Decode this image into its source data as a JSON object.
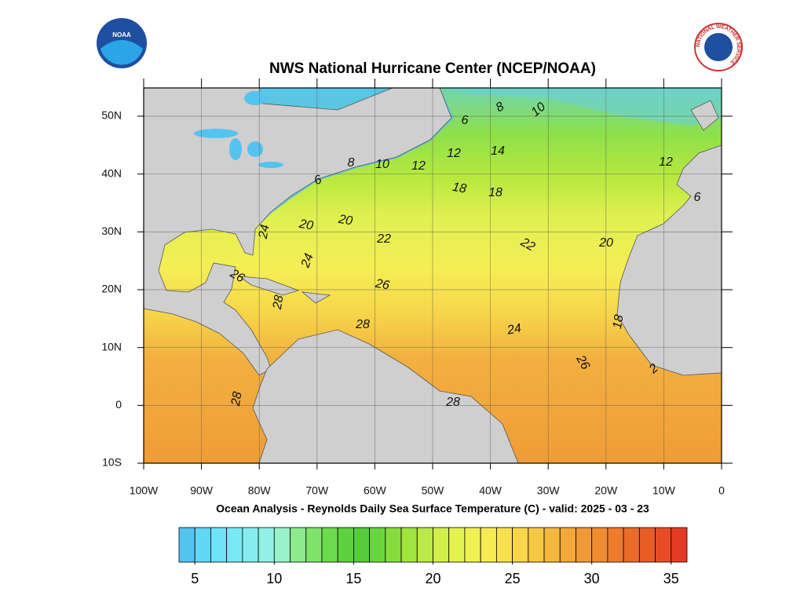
{
  "header": {
    "title": "NWS National Hurricane Center (NCEP/NOAA)",
    "subtitle": "Ocean Analysis - Reynolds Daily Sea Surface Temperature (C) - valid: 2025 - 03 - 23",
    "noaa_logo": "NOAA",
    "nws_logo": "NATIONAL WEATHER SERVICE"
  },
  "map": {
    "lon_ticks": [
      "100W",
      "90W",
      "80W",
      "70W",
      "60W",
      "50W",
      "40W",
      "30W",
      "20W",
      "10W",
      "0"
    ],
    "lat_ticks": [
      "50N",
      "40N",
      "30N",
      "20N",
      "10N",
      "0",
      "10S"
    ],
    "contour_labels": [
      "8",
      "10",
      "6",
      "12",
      "14",
      "8",
      "10",
      "12",
      "6",
      "18",
      "18",
      "12",
      "6",
      "20",
      "20",
      "22",
      "22",
      "20",
      "24",
      "24",
      "26",
      "26",
      "28",
      "28",
      "24",
      "18",
      "26",
      "2",
      "28",
      "28"
    ]
  },
  "colorbar": {
    "range": [
      4,
      36
    ],
    "ticks": [
      5,
      10,
      15,
      20,
      25,
      30,
      35
    ],
    "colors": [
      "#55c3f0",
      "#62d6f5",
      "#6ee3f7",
      "#7ae8f5",
      "#86ecef",
      "#92f0e4",
      "#9cf2c8",
      "#8eea8c",
      "#7ee36a",
      "#6cdb4e",
      "#5cd23e",
      "#54cc3c",
      "#6ad43c",
      "#86dc3c",
      "#a0e43e",
      "#bbea44",
      "#d2ef4a",
      "#e4f250",
      "#eef152",
      "#f5ec54",
      "#f7e150",
      "#f8d64a",
      "#f7c844",
      "#f4b83e",
      "#f2a83a",
      "#f09a36",
      "#ee8c32",
      "#ec7c2e",
      "#ea6c2a",
      "#e85c28",
      "#e64c26",
      "#e43c24"
    ]
  }
}
